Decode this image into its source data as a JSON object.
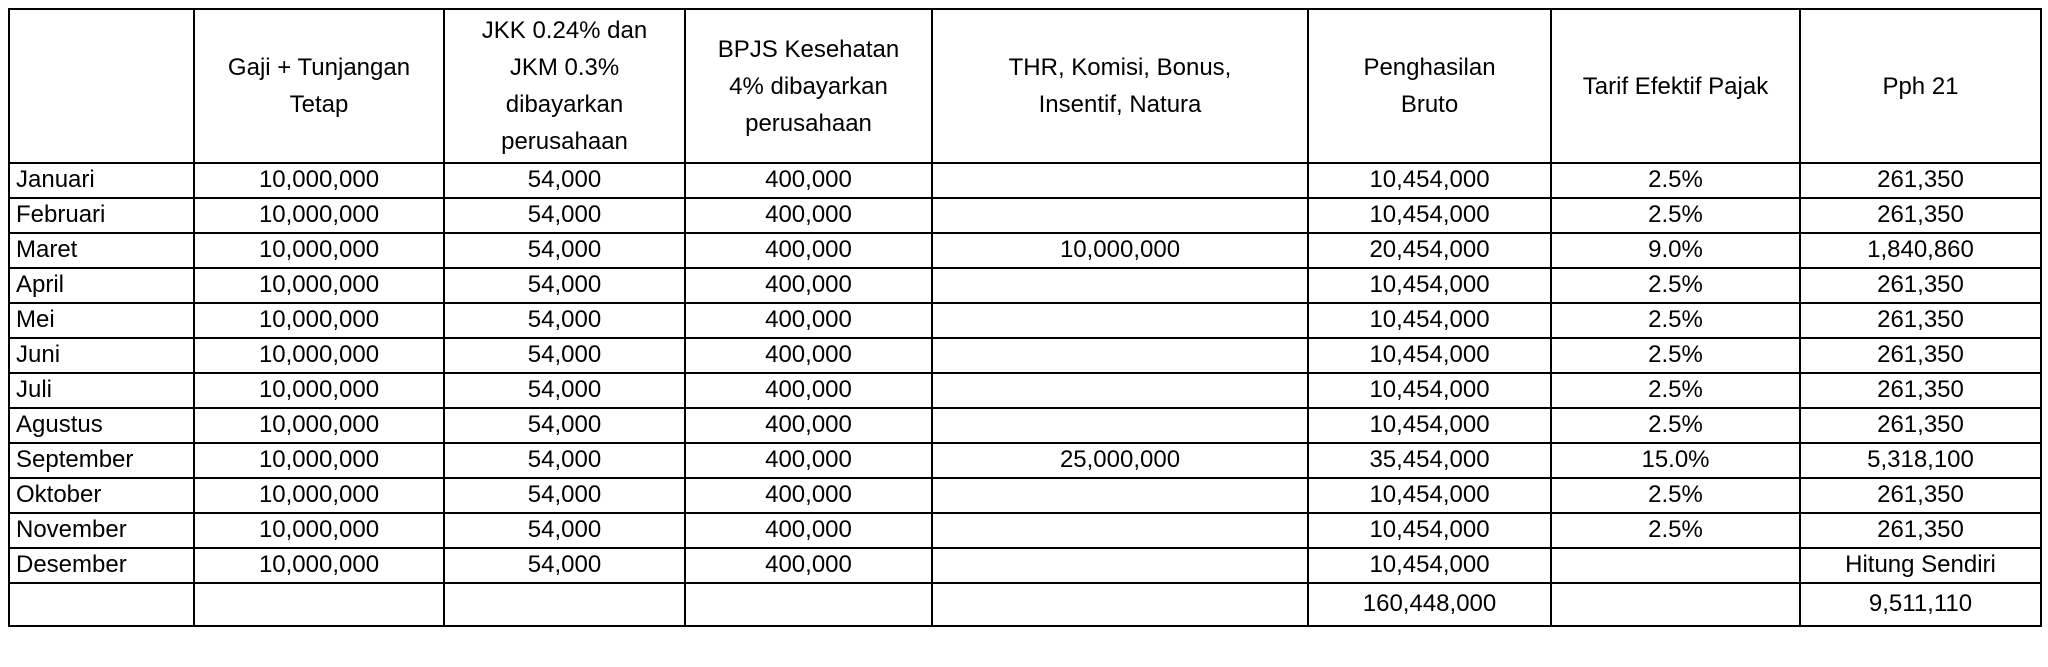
{
  "colors": {
    "background": "#ffffff",
    "border": "#000000",
    "text": "#000000"
  },
  "table": {
    "columns": [
      {
        "key": "month",
        "label": ""
      },
      {
        "key": "gaji_tunjangan_tetap",
        "label": "Gaji + Tunjangan\nTetap"
      },
      {
        "key": "jkk_jkm",
        "label": "JKK 0.24% dan\nJKM 0.3%\ndibayarkan\nperusahaan"
      },
      {
        "key": "bpjs_kesehatan",
        "label": "BPJS Kesehatan\n4% dibayarkan\nperusahaan"
      },
      {
        "key": "thr_komisi_bonus",
        "label": "THR, Komisi, Bonus,\nInsentif, Natura"
      },
      {
        "key": "penghasilan_bruto",
        "label": "Penghasilan\nBruto"
      },
      {
        "key": "tarif_efektif_pajak",
        "label": "Tarif Efektif Pajak"
      },
      {
        "key": "pph_21",
        "label": "Pph 21"
      }
    ],
    "rows": [
      [
        "Januari",
        "10,000,000",
        "54,000",
        "400,000",
        "",
        "10,454,000",
        "2.5%",
        "261,350"
      ],
      [
        "Februari",
        "10,000,000",
        "54,000",
        "400,000",
        "",
        "10,454,000",
        "2.5%",
        "261,350"
      ],
      [
        "Maret",
        "10,000,000",
        "54,000",
        "400,000",
        "10,000,000",
        "20,454,000",
        "9.0%",
        "1,840,860"
      ],
      [
        "April",
        "10,000,000",
        "54,000",
        "400,000",
        "",
        "10,454,000",
        "2.5%",
        "261,350"
      ],
      [
        "Mei",
        "10,000,000",
        "54,000",
        "400,000",
        "",
        "10,454,000",
        "2.5%",
        "261,350"
      ],
      [
        "Juni",
        "10,000,000",
        "54,000",
        "400,000",
        "",
        "10,454,000",
        "2.5%",
        "261,350"
      ],
      [
        "Juli",
        "10,000,000",
        "54,000",
        "400,000",
        "",
        "10,454,000",
        "2.5%",
        "261,350"
      ],
      [
        "Agustus",
        "10,000,000",
        "54,000",
        "400,000",
        "",
        "10,454,000",
        "2.5%",
        "261,350"
      ],
      [
        "September",
        "10,000,000",
        "54,000",
        "400,000",
        "25,000,000",
        "35,454,000",
        "15.0%",
        "5,318,100"
      ],
      [
        "Oktober",
        "10,000,000",
        "54,000",
        "400,000",
        "",
        "10,454,000",
        "2.5%",
        "261,350"
      ],
      [
        "November",
        "10,000,000",
        "54,000",
        "400,000",
        "",
        "10,454,000",
        "2.5%",
        "261,350"
      ],
      [
        "Desember",
        "10,000,000",
        "54,000",
        "400,000",
        "",
        "10,454,000",
        "",
        "Hitung Sendiri"
      ],
      [
        "",
        "",
        "",
        "",
        "",
        "160,448,000",
        "",
        "9,511,110"
      ]
    ]
  }
}
